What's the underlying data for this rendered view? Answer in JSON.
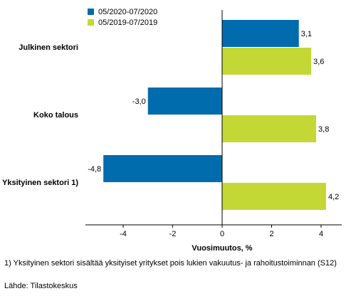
{
  "chart_data": {
    "type": "bar",
    "orientation": "horizontal",
    "categories": [
      "Julkinen sektori",
      "Koko talous",
      "Yksityinen sektori 1)"
    ],
    "series": [
      {
        "name": "05/2020-07/2020",
        "values": [
          3.1,
          -3.0,
          -4.8
        ],
        "labels": [
          "3,1",
          "-3,0",
          "-4,8"
        ],
        "color": "#006bad"
      },
      {
        "name": "05/2019-07/2019",
        "values": [
          3.6,
          3.8,
          4.2
        ],
        "labels": [
          "3,6",
          "3,8",
          "4,2"
        ],
        "color": "#c3d834"
      }
    ],
    "xlabel": "Vuosimuutos, %",
    "xlim": [
      -5.6,
      4.8
    ],
    "xticks": [
      -4,
      -2,
      0,
      2,
      4
    ],
    "xtick_labels": [
      "-4",
      "-2",
      "0",
      "2",
      "4"
    ],
    "grid": false,
    "legend_position": "top-left"
  },
  "footnote": "1) Yksityinen sektori sisältää yksityiset yritykset pois lukien vakuutus- ja rahoitustoiminnan (S12)",
  "source": "Lähde: Tilastokeskus"
}
